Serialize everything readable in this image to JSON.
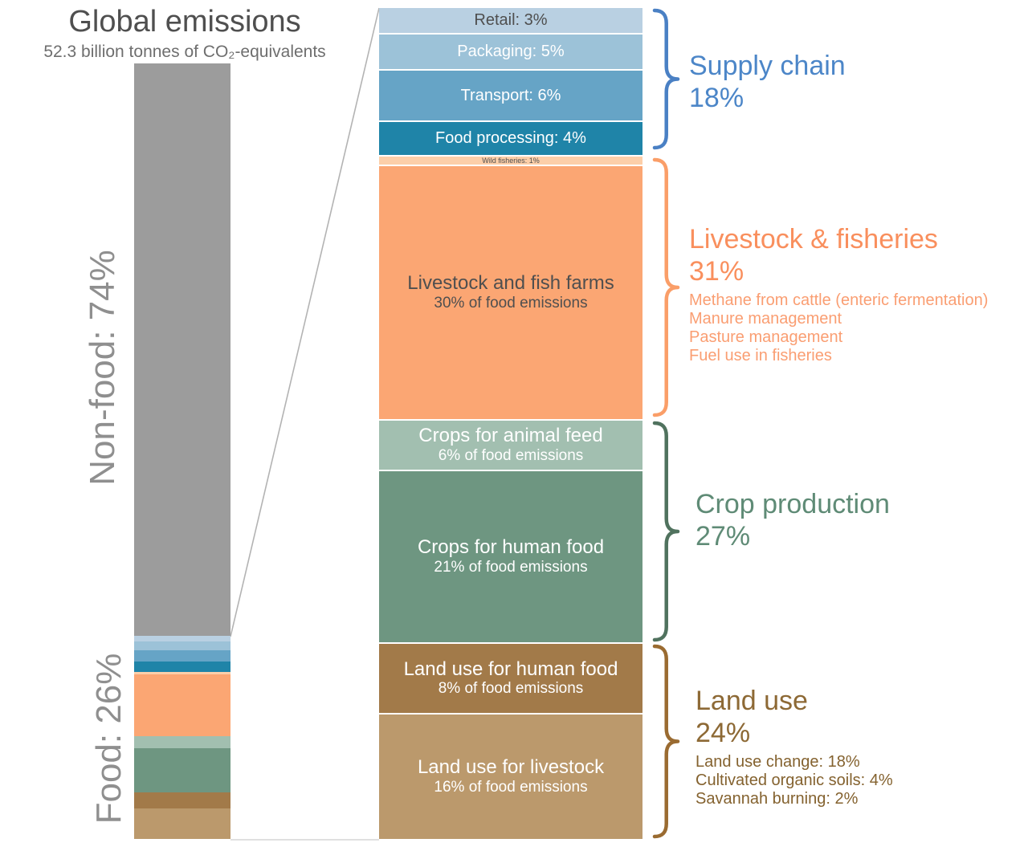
{
  "title": {
    "heading": "Global emissions",
    "subtitle": "52.3 billion tonnes of CO₂-equivalents"
  },
  "left_bar": {
    "non_food_label": "Non-food: 74%",
    "food_label": "Food: 26%",
    "bar_color": "#9c9c9c",
    "label_color": "#8f8f8f"
  },
  "chart_data": {
    "type": "bar",
    "title": "Global emissions",
    "subtitle": "52.3 billion tonnes of CO₂-equivalents",
    "overview_split": [
      {
        "label": "Non-food",
        "percent": 74
      },
      {
        "label": "Food",
        "percent": 26
      }
    ],
    "food_segments": [
      {
        "id": "retail",
        "label": "Retail: 3%",
        "percent_of_food": 3,
        "color": "#b9d0e2",
        "text_color": "#4f4f4f",
        "single": true
      },
      {
        "id": "packaging",
        "label": "Packaging: 5%",
        "percent_of_food": 5,
        "color": "#9cc2d8",
        "text_color": "#ffffff",
        "single": true
      },
      {
        "id": "transport",
        "label": "Transport: 6%",
        "percent_of_food": 6,
        "color": "#66a4c6",
        "text_color": "#ffffff",
        "single": true
      },
      {
        "id": "food-processing",
        "label": "Food processing: 4%",
        "percent_of_food": 4,
        "color": "#1f84a8",
        "text_color": "#ffffff",
        "single": true
      },
      {
        "id": "wild-fisheries",
        "label": "Wild fisheries: 1%",
        "percent_of_food": 1,
        "color": "#fccfa9",
        "text_color": "#4f4f4f",
        "single": true,
        "tiny": true
      },
      {
        "id": "livestock-fish-farms",
        "label": "Livestock and fish farms",
        "sublabel": "30% of food emissions",
        "percent_of_food": 30,
        "color": "#fba673",
        "text_color": "#4f4f4f"
      },
      {
        "id": "crops-animal-feed",
        "label": "Crops for animal feed",
        "sublabel": "6% of food emissions",
        "percent_of_food": 6,
        "color": "#a2bfb0",
        "text_color": "#ffffff"
      },
      {
        "id": "crops-human-food",
        "label": "Crops for human food",
        "sublabel": "21% of food emissions",
        "percent_of_food": 21,
        "color": "#6e9681",
        "text_color": "#ffffff"
      },
      {
        "id": "land-use-human-food",
        "label": "Land use for human food",
        "sublabel": "8% of food emissions",
        "percent_of_food": 8,
        "color": "#a27a49",
        "text_color": "#ffffff"
      },
      {
        "id": "land-use-livestock",
        "label": "Land use for livestock",
        "sublabel": "16% of food emissions",
        "percent_of_food": 16,
        "color": "#bb996c",
        "text_color": "#ffffff"
      }
    ],
    "groups": [
      {
        "name": "Supply chain",
        "percent": "18%",
        "color": "#4c86c8",
        "brace_color": "#4a80c4",
        "detail_color": "#4c86c8",
        "details": []
      },
      {
        "name": "Livestock & fisheries",
        "percent": "31%",
        "color": "#f98f5d",
        "brace_color": "#fa9e68",
        "detail_color": "#fa9e72",
        "details": [
          "Methane from cattle (enteric fermentation)",
          "Manure management",
          "Pasture management",
          "Fuel use in fisheries"
        ]
      },
      {
        "name": "Crop production",
        "percent": "27%",
        "color": "#5f8b76",
        "brace_color": "#50725e",
        "detail_color": "#5f8b76",
        "details": []
      },
      {
        "name": "Land use",
        "percent": "24%",
        "color": "#8d6935",
        "brace_color": "#9a6b31",
        "detail_color": "#84622f",
        "details": [
          "Land use change: 18%",
          "Cultivated organic soils: 4%",
          "Savannah burning: 2%"
        ]
      }
    ]
  }
}
